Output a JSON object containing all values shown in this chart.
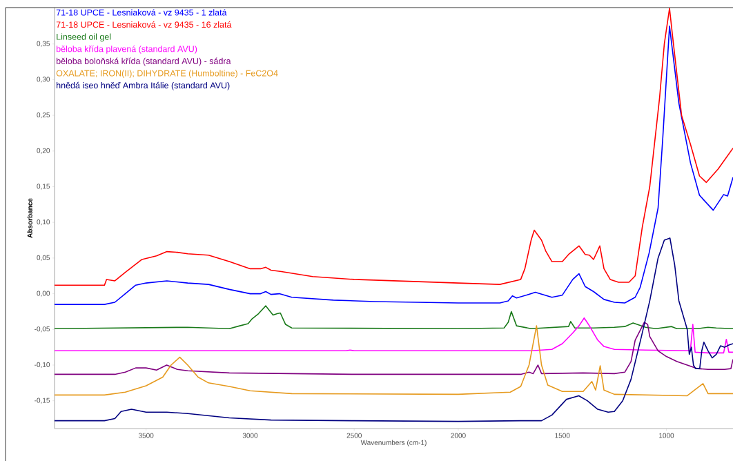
{
  "chart_data": {
    "type": "line",
    "xlabel": "Wavenumbers (cm-1)",
    "ylabel": "Absorbance",
    "legend": "top left",
    "xlim": [
      3940,
      680
    ],
    "ylim": [
      -0.189,
      0.401
    ],
    "xticks": [
      3500,
      3000,
      2500,
      2000,
      1500,
      1000
    ],
    "yticks": [
      {
        "value": -0.15,
        "label": "-0,15"
      },
      {
        "value": -0.1,
        "label": "-0,10"
      },
      {
        "value": -0.05,
        "label": "-0,05"
      },
      {
        "value": 0,
        "label": "0,00"
      },
      {
        "value": 0.05,
        "label": "0,05"
      },
      {
        "value": 0.1,
        "label": "0,10"
      },
      {
        "value": 0.15,
        "label": "0,15"
      },
      {
        "value": 0.2,
        "label": "0,20"
      },
      {
        "value": 0.25,
        "label": "0,25"
      },
      {
        "value": 0.3,
        "label": "0,30"
      },
      {
        "value": 0.35,
        "label": "0,35"
      }
    ],
    "series": [
      {
        "name": "71-18 UPCE - Lesniaková - vz  9435 - 1 zlatá",
        "color": "#0000ff",
        "x": [
          3940,
          3700,
          3650,
          3600,
          3550,
          3500,
          3400,
          3300,
          3200,
          3100,
          3000,
          2950,
          2925,
          2900,
          2860,
          2800,
          2600,
          2400,
          2000,
          1800,
          1760,
          1740,
          1720,
          1650,
          1630,
          1550,
          1500,
          1450,
          1420,
          1390,
          1350,
          1300,
          1250,
          1200,
          1150,
          1126,
          1083,
          1040,
          1017,
          985,
          940,
          884,
          841,
          775,
          725,
          706,
          680
        ],
        "values": [
          -0.015,
          -0.015,
          -0.012,
          0.0,
          0.012,
          0.015,
          0.018,
          0.015,
          0.013,
          0.006,
          0.0,
          0.0,
          0.003,
          -0.001,
          0.0,
          -0.005,
          -0.009,
          -0.011,
          -0.013,
          -0.013,
          -0.01,
          -0.003,
          -0.006,
          0.0,
          0.002,
          -0.005,
          -0.002,
          0.02,
          0.028,
          0.01,
          0.003,
          -0.008,
          -0.012,
          -0.013,
          -0.005,
          0.009,
          0.057,
          0.12,
          0.22,
          0.375,
          0.267,
          0.183,
          0.138,
          0.117,
          0.139,
          0.137,
          0.163
        ]
      },
      {
        "name": "71-18 UPCE - Lesniaková - vz  9435 - 16 zlatá",
        "color": "#ff0000",
        "x": [
          3940,
          3700,
          3690,
          3650,
          3600,
          3520,
          3450,
          3400,
          3350,
          3300,
          3200,
          3100,
          3000,
          2950,
          2925,
          2900,
          2850,
          2700,
          2500,
          2000,
          1800,
          1700,
          1680,
          1650,
          1635,
          1600,
          1580,
          1550,
          1500,
          1470,
          1420,
          1390,
          1370,
          1350,
          1320,
          1300,
          1270,
          1230,
          1180,
          1150,
          1116,
          1080,
          1033,
          1010,
          985,
          970,
          927,
          884,
          841,
          808,
          751,
          680
        ],
        "values": [
          0.012,
          0.012,
          0.02,
          0.018,
          0.03,
          0.048,
          0.053,
          0.059,
          0.058,
          0.056,
          0.054,
          0.045,
          0.035,
          0.035,
          0.037,
          0.033,
          0.031,
          0.024,
          0.02,
          0.015,
          0.013,
          0.02,
          0.035,
          0.075,
          0.089,
          0.075,
          0.06,
          0.045,
          0.045,
          0.055,
          0.067,
          0.055,
          0.054,
          0.048,
          0.067,
          0.035,
          0.02,
          0.016,
          0.016,
          0.025,
          0.093,
          0.15,
          0.274,
          0.35,
          0.4,
          0.36,
          0.25,
          0.209,
          0.165,
          0.156,
          0.175,
          0.204
        ]
      },
      {
        "name": "Linseed oil gel",
        "color": "#1a7a1a",
        "x": [
          3940,
          3300,
          3100,
          3050,
          3010,
          2990,
          2960,
          2925,
          2890,
          2870,
          2855,
          2830,
          2800,
          2000,
          1780,
          1760,
          1745,
          1720,
          1650,
          1470,
          1460,
          1440,
          1350,
          1250,
          1200,
          1160,
          1100,
          1050,
          975,
          950,
          850,
          800,
          760,
          680
        ],
        "values": [
          -0.049,
          -0.047,
          -0.049,
          -0.045,
          -0.042,
          -0.035,
          -0.028,
          -0.017,
          -0.03,
          -0.028,
          -0.027,
          -0.043,
          -0.048,
          -0.049,
          -0.048,
          -0.04,
          -0.025,
          -0.045,
          -0.049,
          -0.046,
          -0.039,
          -0.048,
          -0.048,
          -0.047,
          -0.046,
          -0.041,
          -0.047,
          -0.049,
          -0.046,
          -0.049,
          -0.049,
          -0.047,
          -0.048,
          -0.049
        ]
      },
      {
        "name": "běloba křída plavená (standard AVU)",
        "color": "#ff00ff",
        "x": [
          3940,
          2540,
          2520,
          2500,
          1650,
          1550,
          1500,
          1450,
          1420,
          1395,
          1370,
          1330,
          1300,
          1250,
          1100,
          885,
          873,
          862,
          800,
          725,
          712,
          700,
          680
        ],
        "values": [
          -0.08,
          -0.08,
          -0.079,
          -0.08,
          -0.08,
          -0.078,
          -0.07,
          -0.055,
          -0.045,
          -0.034,
          -0.045,
          -0.065,
          -0.074,
          -0.078,
          -0.079,
          -0.08,
          -0.043,
          -0.082,
          -0.083,
          -0.083,
          -0.064,
          -0.082,
          -0.082
        ]
      },
      {
        "name": "běloba boloňská křída (standard AVU) - sádra",
        "color": "#800080",
        "x": [
          3940,
          3650,
          3600,
          3550,
          3500,
          3450,
          3401,
          3350,
          3300,
          3100,
          2500,
          1700,
          1660,
          1640,
          1617,
          1600,
          1400,
          1250,
          1200,
          1170,
          1150,
          1106,
          1090,
          1080,
          1040,
          1000,
          950,
          900,
          850,
          800,
          720,
          690,
          680
        ],
        "values": [
          -0.113,
          -0.113,
          -0.11,
          -0.104,
          -0.104,
          -0.107,
          -0.1,
          -0.106,
          -0.108,
          -0.111,
          -0.113,
          -0.113,
          -0.11,
          -0.112,
          -0.1,
          -0.112,
          -0.111,
          -0.112,
          -0.11,
          -0.095,
          -0.065,
          -0.04,
          -0.043,
          -0.06,
          -0.08,
          -0.088,
          -0.095,
          -0.1,
          -0.105,
          -0.106,
          -0.106,
          -0.105,
          -0.092
        ]
      },
      {
        "name": "OXALATE; IRON(II); DIHYDRATE (Humboltine) - FeC2O4",
        "color": "#e69a1e",
        "x": [
          3940,
          3700,
          3600,
          3500,
          3420,
          3380,
          3338,
          3300,
          3250,
          3200,
          3100,
          3000,
          2800,
          2000,
          1750,
          1700,
          1660,
          1624,
          1600,
          1570,
          1500,
          1400,
          1358,
          1340,
          1318,
          1300,
          1250,
          900,
          824,
          800,
          680
        ],
        "values": [
          -0.142,
          -0.142,
          -0.138,
          -0.129,
          -0.117,
          -0.1,
          -0.089,
          -0.1,
          -0.117,
          -0.125,
          -0.13,
          -0.136,
          -0.14,
          -0.141,
          -0.138,
          -0.13,
          -0.1,
          -0.045,
          -0.1,
          -0.128,
          -0.137,
          -0.137,
          -0.123,
          -0.135,
          -0.101,
          -0.135,
          -0.141,
          -0.143,
          -0.126,
          -0.14,
          -0.14
        ]
      },
      {
        "name": "hnědá iseo hněď Ambra Itálie (standard AVU)",
        "color": "#000080",
        "x": [
          3940,
          3700,
          3650,
          3620,
          3570,
          3500,
          3400,
          3300,
          3100,
          2900,
          2500,
          2000,
          1700,
          1600,
          1550,
          1480,
          1421,
          1380,
          1330,
          1280,
          1250,
          1210,
          1170,
          1120,
          1080,
          1040,
          1010,
          983,
          960,
          940,
          920,
          900,
          890,
          880,
          870,
          860,
          840,
          830,
          820,
          800,
          780,
          760,
          740,
          720,
          700,
          680
        ],
        "values": [
          -0.178,
          -0.178,
          -0.175,
          -0.165,
          -0.162,
          -0.166,
          -0.166,
          -0.168,
          -0.174,
          -0.177,
          -0.178,
          -0.179,
          -0.178,
          -0.178,
          -0.17,
          -0.148,
          -0.143,
          -0.15,
          -0.162,
          -0.166,
          -0.165,
          -0.15,
          -0.12,
          -0.06,
          -0.01,
          0.05,
          0.075,
          0.078,
          0.04,
          -0.01,
          -0.03,
          -0.05,
          -0.085,
          -0.075,
          -0.1,
          -0.105,
          -0.105,
          -0.08,
          -0.068,
          -0.08,
          -0.09,
          -0.085,
          -0.073,
          -0.075,
          -0.072,
          -0.07
        ]
      }
    ]
  }
}
